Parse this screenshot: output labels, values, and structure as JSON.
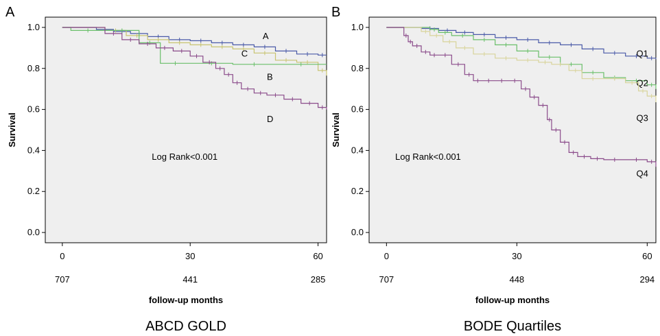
{
  "chart_data": [
    {
      "type": "line",
      "panel_label": "A",
      "subtitle": "ABCD GOLD",
      "xlabel": "follow-up months",
      "ylabel": "Survival",
      "annotation": "Log Rank<0.001",
      "xlim": [
        -4,
        62
      ],
      "ylim": [
        -0.05,
        1.05
      ],
      "xticks": [
        "0",
        "30",
        "60"
      ],
      "yticks": [
        "0.0",
        "0.2",
        "0.4",
        "0.6",
        "0.8",
        "1.0"
      ],
      "at_risk": [
        "707",
        "441",
        "285"
      ],
      "series": [
        {
          "name": "A",
          "color": "#4a5aa8",
          "label_at": [
            47,
            0.96
          ],
          "x": [
            0,
            8,
            12,
            16,
            20,
            25,
            30,
            35,
            40,
            45,
            50,
            55,
            60,
            62
          ],
          "y": [
            1.0,
            0.99,
            0.98,
            0.97,
            0.955,
            0.94,
            0.935,
            0.925,
            0.915,
            0.905,
            0.885,
            0.87,
            0.865,
            0.865
          ]
        },
        {
          "name": "C",
          "color": "#c8c470",
          "label_at": [
            42,
            0.875
          ],
          "x": [
            0,
            10,
            15,
            20,
            25,
            30,
            35,
            40,
            45,
            50,
            55,
            60,
            62
          ],
          "y": [
            1.0,
            0.985,
            0.96,
            0.94,
            0.925,
            0.915,
            0.905,
            0.895,
            0.875,
            0.84,
            0.83,
            0.79,
            0.765
          ]
        },
        {
          "name": "B",
          "color": "#6abf6a",
          "label_at": [
            48,
            0.76
          ],
          "x": [
            0,
            2,
            10,
            18,
            23,
            30,
            40,
            50,
            62
          ],
          "y": [
            1.0,
            0.985,
            0.985,
            0.925,
            0.825,
            0.825,
            0.82,
            0.82,
            0.82
          ]
        },
        {
          "name": "D",
          "color": "#8a4a8a",
          "label_at": [
            48,
            0.555
          ],
          "x": [
            0,
            10,
            14,
            18,
            22,
            26,
            30,
            33,
            36,
            38,
            40,
            42,
            45,
            48,
            52,
            56,
            60,
            62
          ],
          "y": [
            1.0,
            0.97,
            0.94,
            0.92,
            0.9,
            0.885,
            0.86,
            0.83,
            0.8,
            0.77,
            0.73,
            0.7,
            0.68,
            0.67,
            0.65,
            0.63,
            0.61,
            0.6
          ]
        }
      ]
    },
    {
      "type": "line",
      "panel_label": "B",
      "subtitle": "BODE Quartiles",
      "xlabel": "follow-up months",
      "ylabel": "Survival",
      "annotation": "Log Rank<0.001",
      "xlim": [
        -4,
        62
      ],
      "ylim": [
        -0.05,
        1.05
      ],
      "xticks": [
        "0",
        "30",
        "60"
      ],
      "yticks": [
        "0.0",
        "0.2",
        "0.4",
        "0.6",
        "0.8",
        "1.0"
      ],
      "at_risk": [
        "707",
        "448",
        "294"
      ],
      "series": [
        {
          "name": "Q1",
          "color": "#4a5aa8",
          "label_at": [
            57.5,
            0.875
          ],
          "x": [
            0,
            8,
            12,
            16,
            20,
            25,
            30,
            35,
            40,
            45,
            50,
            55,
            60,
            62
          ],
          "y": [
            1.0,
            0.995,
            0.985,
            0.975,
            0.965,
            0.95,
            0.94,
            0.925,
            0.915,
            0.895,
            0.875,
            0.86,
            0.85,
            0.845
          ]
        },
        {
          "name": "Q2",
          "color": "#6abf6a",
          "label_at": [
            57.5,
            0.73
          ],
          "x": [
            0,
            10,
            12,
            15,
            20,
            25,
            30,
            35,
            40,
            45,
            50,
            55,
            60,
            62
          ],
          "y": [
            1.0,
            0.99,
            0.975,
            0.96,
            0.94,
            0.915,
            0.885,
            0.855,
            0.82,
            0.78,
            0.755,
            0.74,
            0.72,
            0.7
          ]
        },
        {
          "name": "Q3",
          "color": "#d8d49a",
          "label_at": [
            57.5,
            0.56
          ],
          "x": [
            0,
            8,
            10,
            13,
            16,
            20,
            25,
            30,
            35,
            38,
            42,
            45,
            50,
            55,
            58,
            60,
            62
          ],
          "y": [
            1.0,
            0.98,
            0.96,
            0.93,
            0.9,
            0.87,
            0.85,
            0.84,
            0.83,
            0.82,
            0.79,
            0.75,
            0.75,
            0.73,
            0.69,
            0.665,
            0.635
          ]
        },
        {
          "name": "Q4",
          "color": "#8a4a8a",
          "label_at": [
            57.5,
            0.29
          ],
          "x": [
            0,
            4,
            5,
            6,
            8,
            10,
            12,
            15,
            18,
            20,
            22,
            25,
            28,
            31,
            33,
            35,
            37,
            38,
            40,
            42,
            44,
            47,
            50,
            55,
            60,
            62
          ],
          "y": [
            1.0,
            0.96,
            0.93,
            0.91,
            0.88,
            0.865,
            0.865,
            0.82,
            0.77,
            0.74,
            0.74,
            0.74,
            0.74,
            0.7,
            0.66,
            0.62,
            0.55,
            0.5,
            0.44,
            0.39,
            0.37,
            0.36,
            0.355,
            0.355,
            0.345,
            0.32
          ]
        }
      ]
    }
  ]
}
